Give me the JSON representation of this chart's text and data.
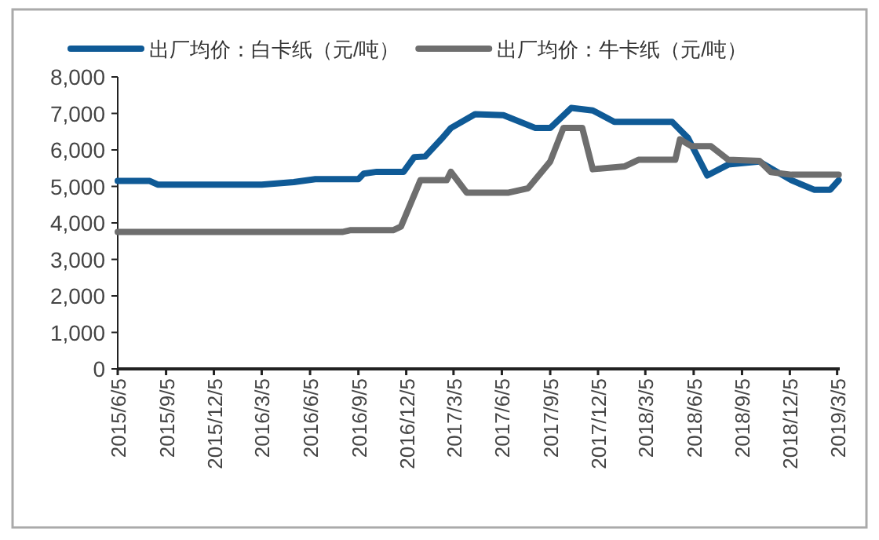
{
  "chart_data": {
    "type": "line",
    "legend": "top",
    "grid": false,
    "marker": "none",
    "line_style": "solid",
    "xlim": [
      "2015-06-05",
      "2019-03-10"
    ],
    "xticks": [
      {
        "value": "2015-06-05",
        "label": "2015/6/5"
      },
      {
        "value": "2015-09-05",
        "label": "2015/9/5"
      },
      {
        "value": "2015-12-05",
        "label": "2015/12/5"
      },
      {
        "value": "2016-03-05",
        "label": "2016/3/5"
      },
      {
        "value": "2016-06-05",
        "label": "2016/6/5"
      },
      {
        "value": "2016-09-05",
        "label": "2016/9/5"
      },
      {
        "value": "2016-12-05",
        "label": "2016/12/5"
      },
      {
        "value": "2017-03-05",
        "label": "2017/3/5"
      },
      {
        "value": "2017-06-05",
        "label": "2017/6/5"
      },
      {
        "value": "2017-09-05",
        "label": "2017/9/5"
      },
      {
        "value": "2017-12-05",
        "label": "2017/12/5"
      },
      {
        "value": "2018-03-05",
        "label": "2018/3/5"
      },
      {
        "value": "2018-06-05",
        "label": "2018/6/5"
      },
      {
        "value": "2018-09-05",
        "label": "2018/9/5"
      },
      {
        "value": "2018-12-05",
        "label": "2018/12/5"
      },
      {
        "value": "2019-03-05",
        "label": "2019/3/5"
      }
    ],
    "ylim": [
      0,
      8000
    ],
    "yticks": [
      {
        "value": 0,
        "label": "0"
      },
      {
        "value": 1000,
        "label": "1,000"
      },
      {
        "value": 2000,
        "label": "2,000"
      },
      {
        "value": 3000,
        "label": "3,000"
      },
      {
        "value": 4000,
        "label": "4,000"
      },
      {
        "value": 5000,
        "label": "5,000"
      },
      {
        "value": 6000,
        "label": "6,000"
      },
      {
        "value": 7000,
        "label": "7,000"
      },
      {
        "value": 8000,
        "label": "8,000"
      }
    ],
    "series": [
      {
        "name": "出厂均价：白卡纸（元/吨）",
        "color": "#0f5a96",
        "x": [
          "2015-06-05",
          "2015-08-05",
          "2015-08-20",
          "2016-03-05",
          "2016-05-05",
          "2016-06-15",
          "2016-09-05",
          "2016-09-15",
          "2016-10-10",
          "2016-11-30",
          "2016-12-20",
          "2017-01-10",
          "2017-02-10",
          "2017-02-28",
          "2017-04-15",
          "2017-06-08",
          "2017-08-08",
          "2017-09-05",
          "2017-10-15",
          "2017-11-25",
          "2018-01-05",
          "2018-04-25",
          "2018-05-25",
          "2018-07-01",
          "2018-08-10",
          "2018-10-08",
          "2018-12-08",
          "2019-01-20",
          "2019-02-20",
          "2019-03-08"
        ],
        "values": [
          5150,
          5150,
          5050,
          5050,
          5120,
          5200,
          5200,
          5350,
          5400,
          5400,
          5800,
          5820,
          6300,
          6600,
          6980,
          6950,
          6600,
          6600,
          7150,
          7080,
          6770,
          6770,
          6330,
          5300,
          5600,
          5680,
          5170,
          4910,
          4910,
          5170
        ]
      },
      {
        "name": "出厂均价：牛卡纸（元/吨）",
        "color": "#6e6e6e",
        "x": [
          "2015-06-05",
          "2016-08-05",
          "2016-08-20",
          "2016-11-10",
          "2016-11-25",
          "2017-01-01",
          "2017-02-20",
          "2017-02-28",
          "2017-03-30",
          "2017-06-18",
          "2017-07-25",
          "2017-09-05",
          "2017-09-30",
          "2017-11-05",
          "2017-11-25",
          "2018-01-25",
          "2018-02-20",
          "2018-05-01",
          "2018-05-10",
          "2018-06-01",
          "2018-07-08",
          "2018-08-10",
          "2018-10-08",
          "2018-10-30",
          "2018-12-08",
          "2019-03-08"
        ],
        "values": [
          3750,
          3750,
          3800,
          3800,
          3900,
          5170,
          5170,
          5400,
          4830,
          4830,
          4950,
          5680,
          6600,
          6600,
          5470,
          5550,
          5730,
          5730,
          6290,
          6100,
          6100,
          5730,
          5700,
          5390,
          5320,
          5320
        ]
      }
    ]
  }
}
